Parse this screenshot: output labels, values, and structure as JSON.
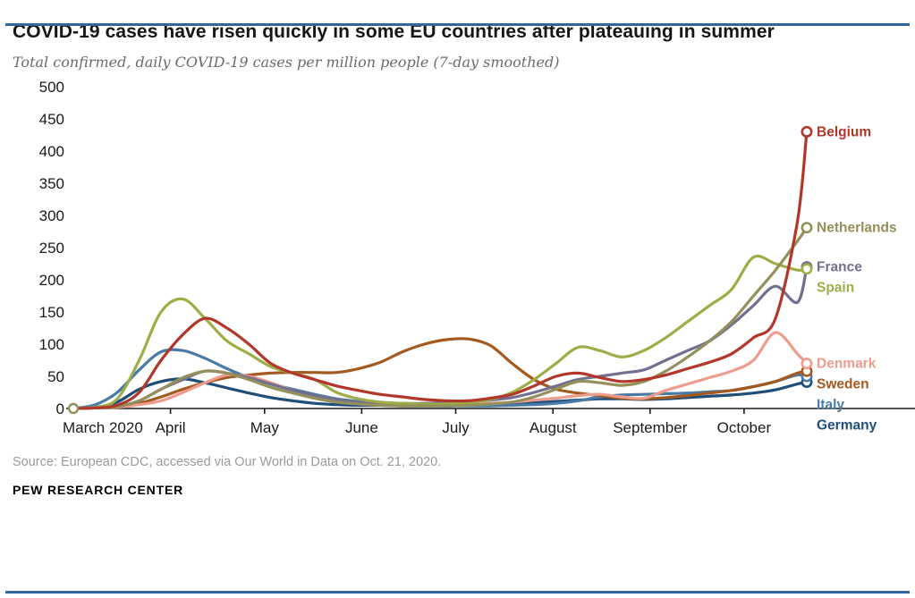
{
  "header": {
    "title": "COVID-19 cases have risen quickly in some EU countries after plateauing in summer",
    "subtitle": "Total confirmed, daily COVID-19 cases per million people (7-day smoothed)"
  },
  "footer": {
    "source": "Source: European CDC, accessed via Our World in Data on Oct. 21, 2020.",
    "brand": "PEW RESEARCH CENTER"
  },
  "theme": {
    "rule_color": "#31679b",
    "axis_color": "#1a1a1a"
  },
  "chart_data": {
    "type": "line",
    "title": "COVID-19 cases have risen quickly in some EU countries after plateauing in summer",
    "subtitle": "Total confirmed, daily COVID-19 cases per million people (7-day smoothed)",
    "x_unit": "days since March 1, 2020 (through Oct. 21, 2020)",
    "x": [
      0,
      7,
      14,
      21,
      28,
      35,
      42,
      49,
      56,
      63,
      70,
      77,
      84,
      91,
      98,
      105,
      112,
      119,
      126,
      133,
      140,
      147,
      154,
      161,
      168,
      175,
      182,
      189,
      196,
      203,
      210,
      217,
      224,
      231,
      234
    ],
    "x_tick_days": [
      0,
      31,
      61,
      92,
      122,
      153,
      184,
      214
    ],
    "x_tick_labels": [
      "March 2020",
      "April",
      "May",
      "June",
      "July",
      "August",
      "September",
      "October"
    ],
    "ylim": [
      0,
      500
    ],
    "y_ticks": [
      0,
      50,
      100,
      150,
      200,
      250,
      300,
      350,
      400,
      450,
      500
    ],
    "grid": false,
    "legend_position": "right-of-line-ends",
    "series": [
      {
        "name": "Germany",
        "color": "#1f4e79",
        "values": [
          0,
          2,
          10,
          30,
          42,
          46,
          40,
          32,
          24,
          17,
          12,
          8,
          6,
          5,
          5,
          4,
          4,
          4,
          5,
          6,
          7,
          9,
          11,
          13,
          15,
          15,
          14,
          15,
          17,
          19,
          21,
          24,
          29,
          38,
          41
        ]
      },
      {
        "name": "Italy",
        "color": "#4a7ba6",
        "values": [
          0,
          6,
          25,
          60,
          88,
          90,
          78,
          62,
          48,
          38,
          30,
          22,
          15,
          11,
          8,
          6,
          5,
          4,
          4,
          4,
          5,
          6,
          8,
          12,
          18,
          21,
          22,
          23,
          24,
          26,
          28,
          34,
          42,
          52,
          50
        ]
      },
      {
        "name": "Sweden",
        "color": "#a4591e",
        "values": [
          0,
          1,
          3,
          8,
          18,
          30,
          40,
          48,
          52,
          55,
          56,
          56,
          56,
          62,
          72,
          88,
          100,
          107,
          108,
          98,
          70,
          45,
          30,
          24,
          20,
          16,
          15,
          17,
          20,
          24,
          28,
          34,
          42,
          55,
          58
        ]
      },
      {
        "name": "Denmark",
        "color": "#ee9c8e",
        "values": [
          0,
          1,
          2,
          6,
          12,
          25,
          40,
          52,
          50,
          40,
          28,
          18,
          12,
          8,
          6,
          5,
          5,
          5,
          6,
          8,
          10,
          13,
          16,
          20,
          22,
          18,
          16,
          28,
          38,
          48,
          58,
          75,
          118,
          85,
          70
        ]
      },
      {
        "name": "France",
        "color": "#73708f",
        "values": [
          0,
          1,
          3,
          12,
          30,
          45,
          58,
          55,
          48,
          38,
          28,
          20,
          14,
          10,
          9,
          8,
          8,
          9,
          10,
          13,
          17,
          25,
          35,
          45,
          50,
          55,
          60,
          75,
          90,
          105,
          130,
          160,
          190,
          165,
          220
        ]
      },
      {
        "name": "Spain",
        "color": "#9dae49",
        "values": [
          0,
          2,
          15,
          75,
          150,
          170,
          140,
          105,
          85,
          65,
          55,
          45,
          25,
          15,
          10,
          8,
          7,
          7,
          9,
          14,
          25,
          45,
          70,
          95,
          90,
          80,
          90,
          110,
          135,
          160,
          185,
          235,
          225,
          215,
          217
        ]
      },
      {
        "name": "Netherlands",
        "color": "#94905a",
        "start_marker": true,
        "values": [
          0,
          1,
          3,
          12,
          30,
          48,
          58,
          55,
          45,
          33,
          24,
          16,
          10,
          7,
          5,
          4,
          4,
          4,
          5,
          7,
          10,
          18,
          30,
          42,
          40,
          36,
          42,
          58,
          80,
          105,
          135,
          175,
          215,
          260,
          281
        ]
      },
      {
        "name": "Belgium",
        "color": "#b3362b",
        "values": [
          0,
          1,
          5,
          25,
          75,
          115,
          140,
          125,
          100,
          70,
          55,
          45,
          35,
          28,
          22,
          18,
          14,
          12,
          12,
          16,
          22,
          35,
          50,
          55,
          48,
          42,
          45,
          52,
          62,
          72,
          85,
          110,
          140,
          290,
          430
        ]
      }
    ]
  }
}
